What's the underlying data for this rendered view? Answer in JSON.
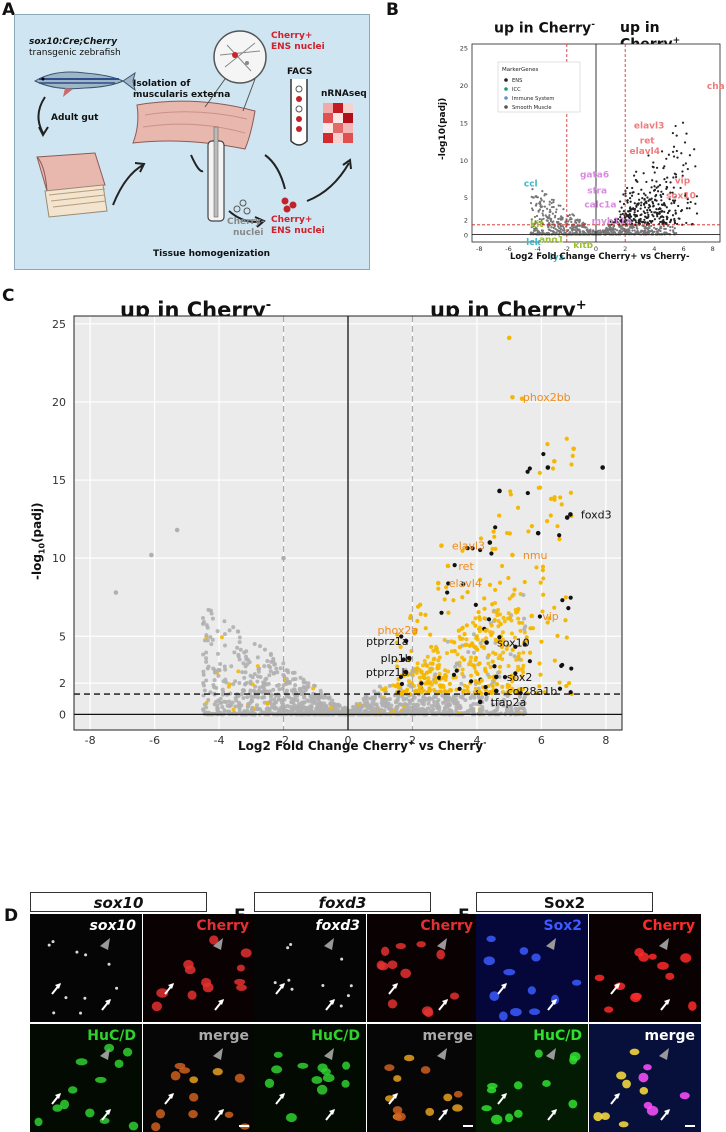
{
  "panel_labels": {
    "a": "A",
    "b": "B",
    "c": "C",
    "d": "D",
    "e": "E",
    "f": "F"
  },
  "panelA": {
    "fish_label_italic": "sox10:Cre;Cherry",
    "fish_label_rest": "transgenic zebrafish",
    "adult_gut": "Adult gut",
    "isolation_line1": "Isolation of",
    "isolation_line2": "muscularis externa",
    "cherry_ens_line1": "Cherry+",
    "cherry_ens_line2": "ENS nuclei",
    "facs": "FACS",
    "nrnaseq": "nRNAseq",
    "cherry_minus_line1": "Cherry-",
    "cherry_minus_line2": "nuclei",
    "cherry_plus_out_line1": "Cherry+",
    "cherry_plus_out_line2": "ENS nuclei",
    "homogenization": "Tissue homogenization"
  },
  "panelB": {
    "up_minus": "up in Cherry",
    "up_plus": "up in Cherry",
    "sup_minus": "-",
    "sup_plus": "+",
    "ylabel": "-log10(padj)",
    "xlabel": "Log2 Fold Change Cherry+ vs Cherry-",
    "legend_title": "MarkerGenes",
    "legend": [
      {
        "name": "ENS",
        "color": "#222222"
      },
      {
        "name": "ICC",
        "color": "#1a9c6c"
      },
      {
        "name": "Immune System",
        "color": "#6a8fcf"
      },
      {
        "name": "Smooth Muscle",
        "color": "#555555"
      }
    ],
    "yticks": [
      "25",
      "20",
      "15",
      "10",
      "5",
      "2",
      "0"
    ],
    "xticks": [
      "-8",
      "-6",
      "-4",
      "-2",
      "0",
      "2",
      "4",
      "6",
      "8"
    ],
    "genes": [
      {
        "t": "chata",
        "c": "#f07b7b"
      },
      {
        "t": "elavl3",
        "c": "#f07b7b"
      },
      {
        "t": "ret",
        "c": "#f07b7b"
      },
      {
        "t": "elavl4",
        "c": "#f07b7b"
      },
      {
        "t": "vip",
        "c": "#f07b7b"
      },
      {
        "t": "sox10",
        "c": "#f07b7b"
      },
      {
        "t": "gata6",
        "c": "#d98be0"
      },
      {
        "t": "sfra",
        "c": "#d98be0"
      },
      {
        "t": "calc1a",
        "c": "#d98be0"
      },
      {
        "t": "myh11a",
        "c": "#d98be0"
      },
      {
        "t": "ano1",
        "c": "#9bbf2e"
      },
      {
        "t": "kitb",
        "c": "#9bbf2e"
      },
      {
        "t": "lck",
        "c": "#3fb9c9"
      },
      {
        "t": "lyz",
        "c": "#3fb9c9"
      },
      {
        "t": "kit",
        "c": "#9bbf2e"
      },
      {
        "t": "ccl",
        "c": "#3fb9c9"
      }
    ]
  },
  "panelC": {
    "up_minus": "up in Cherry",
    "up_plus": "up in Cherry",
    "sup_minus": "-",
    "sup_plus": "+",
    "ylabel_pre": "-log",
    "ylabel_sub": "10",
    "ylabel_post": "(padj)",
    "xlabel_pre": "Log2 Fold Change Cherry",
    "xlabel_sup1": "+",
    "xlabel_mid": " vs Cherry",
    "xlabel_sup2": "-"
  },
  "chart_data": {
    "type": "scatter",
    "xlim": [
      -8.5,
      8.5
    ],
    "ylim": [
      -1,
      25.5
    ],
    "xticks": [
      -8,
      -6,
      -4,
      -2,
      0,
      2,
      4,
      6,
      8
    ],
    "yticks": [
      0,
      2,
      5,
      10,
      15,
      20,
      25
    ],
    "hlines": [
      0,
      1.3
    ],
    "vlines_dashed": [
      -2,
      2
    ],
    "vline_solid": 0,
    "title_left": "up in Cherry-",
    "title_right": "up in Cherry+",
    "colors": {
      "background": "#ebebeb",
      "nonsig": "#b0b0b0",
      "sig": "#f5b800",
      "marker": "#111111"
    },
    "labeled_genes": [
      {
        "label": "phox2bb",
        "x": 5.3,
        "y": 20.3,
        "color": "#f08a1c"
      },
      {
        "label": "foxd3",
        "x": 7.1,
        "y": 12.8,
        "color": "#111111"
      },
      {
        "label": "elavl3",
        "x": 3.1,
        "y": 10.8,
        "color": "#f08a1c"
      },
      {
        "label": "nmu",
        "x": 5.3,
        "y": 10.2,
        "color": "#f08a1c"
      },
      {
        "label": "ret",
        "x": 3.3,
        "y": 9.5,
        "color": "#f08a1c"
      },
      {
        "label": "elavl4",
        "x": 3.0,
        "y": 8.4,
        "color": "#f08a1c"
      },
      {
        "label": "vip",
        "x": 5.9,
        "y": 6.3,
        "color": "#f08a1c"
      },
      {
        "label": "phox2a",
        "x": 2.3,
        "y": 5.4,
        "color": "#f08a1c"
      },
      {
        "label": "sox10",
        "x": 4.5,
        "y": 4.6,
        "color": "#111111"
      },
      {
        "label": "ptprz1a",
        "x": 2.0,
        "y": 4.7,
        "color": "#111111"
      },
      {
        "label": "plp1b",
        "x": 2.1,
        "y": 3.6,
        "color": "#111111"
      },
      {
        "label": "ptprz1b",
        "x": 2.0,
        "y": 2.7,
        "color": "#111111"
      },
      {
        "label": "sox2",
        "x": 4.8,
        "y": 2.4,
        "color": "#111111"
      },
      {
        "label": "col28a1b",
        "x": 4.8,
        "y": 1.5,
        "color": "#111111"
      },
      {
        "label": "tfap2a",
        "x": 4.3,
        "y": 0.8,
        "color": "#111111"
      }
    ],
    "highlight_points": [
      {
        "x": 5.0,
        "y": 24.1
      },
      {
        "x": 5.4,
        "y": 20.2
      },
      {
        "x": 7.0,
        "y": 17.0
      },
      {
        "x": 6.4,
        "y": 16.2
      },
      {
        "x": 7.9,
        "y": 15.8
      },
      {
        "x": 6.2,
        "y": 15.8
      },
      {
        "x": 4.7,
        "y": 14.3
      },
      {
        "x": 6.8,
        "y": 12.6
      },
      {
        "x": 5.9,
        "y": 11.6
      },
      {
        "x": 4.4,
        "y": 11.0
      },
      {
        "x": -7.2,
        "y": 7.8
      },
      {
        "x": -5.3,
        "y": 11.8
      },
      {
        "x": -6.1,
        "y": 10.2
      },
      {
        "x": -2.0,
        "y": 10.0
      }
    ]
  },
  "micro": {
    "D": {
      "title": "sox10",
      "tl": "sox10",
      "tr": "Cherry",
      "bl": "HuC/D",
      "br": "merge"
    },
    "E": {
      "title": "foxd3",
      "tl": "foxd3",
      "tr": "Cherry",
      "bl": "HuC/D",
      "br": "merge"
    },
    "F": {
      "title": "Sox2",
      "tl": "Sox2",
      "tr": "Cherry",
      "bl": "HuC/D",
      "br": "merge"
    }
  }
}
